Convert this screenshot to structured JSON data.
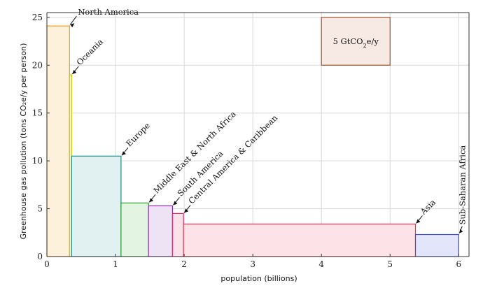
{
  "chart_data": {
    "type": "bar",
    "title": "",
    "xlabel": "population (billions)",
    "ylabel": "Greenhouse gas pollution (tons CO₂e/y per person)",
    "xlim": [
      0,
      6.15
    ],
    "ylim": [
      0,
      25.5
    ],
    "x_ticks": [
      0,
      1,
      2,
      3,
      4,
      5,
      6
    ],
    "y_ticks": [
      0,
      5,
      10,
      15,
      20,
      25
    ],
    "grid": true,
    "bar_widths_represent": "population (billions)",
    "bar_heights_represent": "per-capita emissions (tons CO₂e/y)",
    "regions": [
      {
        "name": "North America",
        "population": 0.33,
        "per_capita": 24.1,
        "color": "#f0a020",
        "fill": "#fdf1dc"
      },
      {
        "name": "Oceania",
        "population": 0.03,
        "per_capita": 19.0,
        "color": "#c8c800",
        "fill": "#fbfbd6"
      },
      {
        "name": "Europe",
        "population": 0.72,
        "per_capita": 10.5,
        "color": "#1a8a8a",
        "fill": "#e1f1f1"
      },
      {
        "name": "Middle East & North Africa",
        "population": 0.4,
        "per_capita": 5.6,
        "color": "#2ca02c",
        "fill": "#e3f4e3"
      },
      {
        "name": "South America",
        "population": 0.35,
        "per_capita": 5.3,
        "color": "#8a2ab0",
        "fill": "#eee2f5"
      },
      {
        "name": "Central America & Caribbean",
        "population": 0.16,
        "per_capita": 4.5,
        "color": "#e0306a",
        "fill": "#fbe2ea"
      },
      {
        "name": "Asia",
        "population": 3.38,
        "per_capita": 3.4,
        "color": "#e0304a",
        "fill": "#fde3e7"
      },
      {
        "name": "Sub-Saharan Africa",
        "population": 0.63,
        "per_capita": 2.3,
        "color": "#3a4ad8",
        "fill": "#e3e6fa"
      }
    ],
    "legend_box": {
      "label_prefix": "5 GtCO",
      "label_subscript": "2",
      "label_suffix": "e/y",
      "x_range": [
        4.0,
        5.0
      ],
      "y_range": [
        20,
        25
      ],
      "color": "#a0522d",
      "fill": "#f7e9e3"
    }
  }
}
